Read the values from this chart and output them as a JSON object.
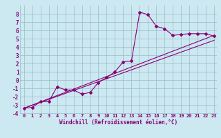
{
  "xlabel": "Windchill (Refroidissement éolien,°C)",
  "bg_color": "#cce8f0",
  "grid_color": "#99bbcc",
  "line_color": "#880077",
  "xlim": [
    0,
    23
  ],
  "ylim": [
    -4,
    9
  ],
  "xticks": [
    0,
    1,
    2,
    3,
    4,
    5,
    6,
    7,
    8,
    9,
    10,
    11,
    12,
    13,
    14,
    15,
    16,
    17,
    18,
    19,
    20,
    21,
    22,
    23
  ],
  "yticks": [
    -4,
    -3,
    -2,
    -1,
    0,
    1,
    2,
    3,
    4,
    5,
    6,
    7,
    8
  ],
  "curve1_x": [
    0,
    1,
    2,
    3,
    4,
    5,
    6,
    7,
    8,
    9,
    10,
    11,
    12,
    13,
    14,
    15,
    16,
    17,
    18,
    19,
    20,
    21,
    22,
    23
  ],
  "curve1_y": [
    -3.4,
    -3.3,
    -2.6,
    -2.6,
    -0.8,
    -1.2,
    -1.2,
    -1.7,
    -1.5,
    -0.3,
    0.3,
    1.0,
    2.2,
    2.3,
    8.2,
    7.9,
    6.5,
    6.2,
    5.4,
    5.5,
    5.6,
    5.6,
    5.6,
    5.3
  ],
  "line1_x": [
    0,
    23
  ],
  "line1_y": [
    -3.4,
    5.4
  ],
  "line2_x": [
    0,
    23
  ],
  "line2_y": [
    -3.4,
    4.8
  ],
  "markersize": 2.0,
  "linewidth": 0.8
}
